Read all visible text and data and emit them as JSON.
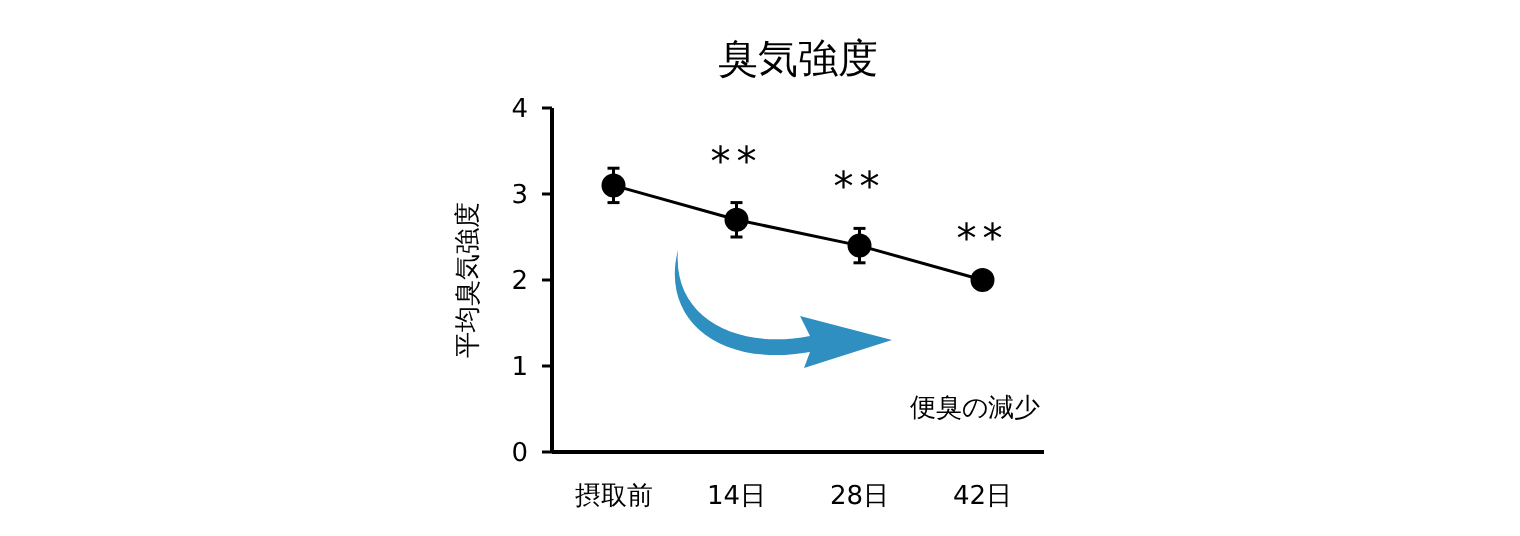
{
  "chart_data": {
    "type": "line",
    "title": "臭気強度",
    "ylabel": "平均臭気強度",
    "categories": [
      "摂取前",
      "14日",
      "28日",
      "42日"
    ],
    "series": [
      {
        "color": "#000000",
        "values": [
          3.1,
          2.7,
          2.4,
          2.0
        ],
        "errors": [
          0.2,
          0.2,
          0.2,
          null
        ]
      }
    ],
    "marker": "circle",
    "line_style": "solid",
    "ylim": [
      0,
      4
    ],
    "yticks": [
      0,
      1,
      2,
      3,
      4
    ],
    "grid": false,
    "annotations": [
      "**",
      "**",
      "**",
      "便臭の減少"
    ]
  }
}
